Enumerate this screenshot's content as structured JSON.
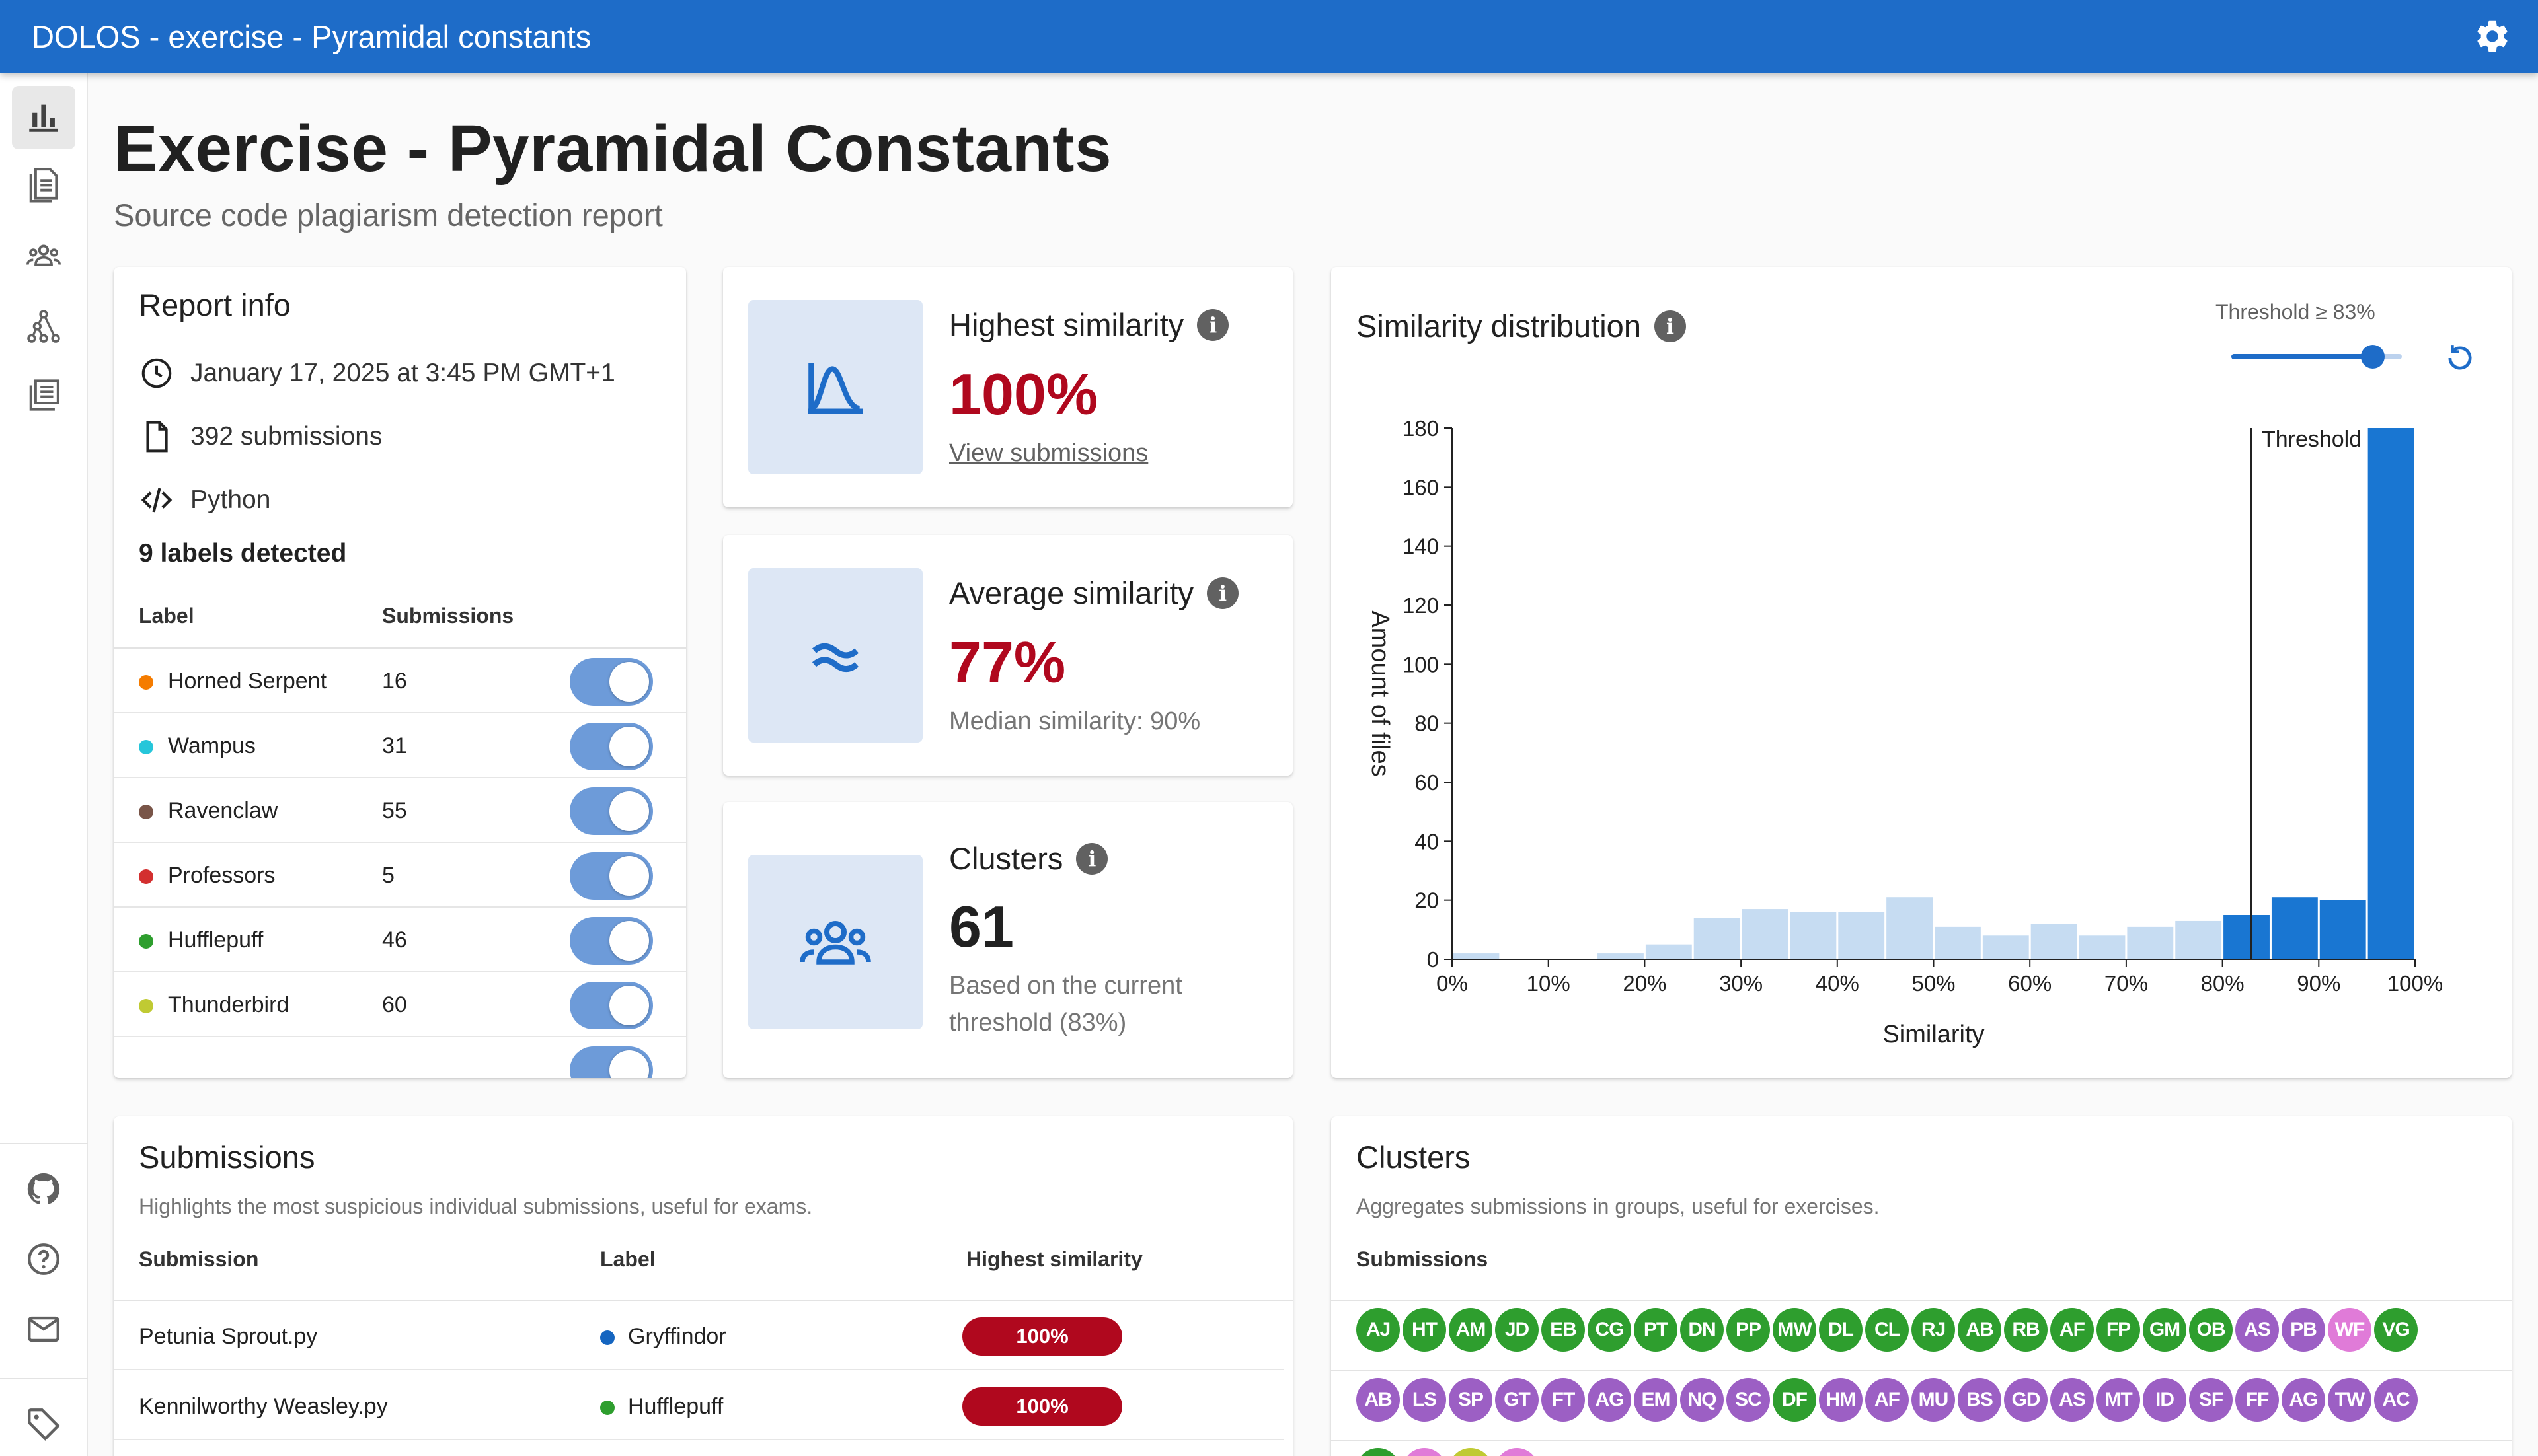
{
  "app": {
    "title": "DOLOS - exercise - Pyramidal constants"
  },
  "page": {
    "title": "Exercise - Pyramidal Constants",
    "subtitle": "Source code plagiarism detection report"
  },
  "colors": {
    "primary": "#1e6cc8",
    "danger": "#b0081e",
    "histogram_light": "#c6dcf2",
    "histogram_dark": "#1976d2"
  },
  "sidebar": {
    "items": [
      {
        "name": "overview",
        "icon": "bar-chart-icon",
        "active": true
      },
      {
        "name": "submissions",
        "icon": "document-list-icon",
        "active": false
      },
      {
        "name": "clusters",
        "icon": "group-icon",
        "active": false
      },
      {
        "name": "graph",
        "icon": "graph-icon",
        "active": false
      },
      {
        "name": "pairs",
        "icon": "table-icon",
        "active": false
      }
    ],
    "bottom_items": [
      {
        "name": "github",
        "icon": "github-icon"
      },
      {
        "name": "help",
        "icon": "help-icon"
      },
      {
        "name": "contact",
        "icon": "mail-icon"
      },
      {
        "name": "version",
        "icon": "tag-icon"
      }
    ]
  },
  "report_info": {
    "title": "Report info",
    "date": "January 17, 2025 at 3:45 PM GMT+1",
    "submissions": "392 submissions",
    "language": "Python",
    "labels_title": "9 labels detected",
    "columns": {
      "label": "Label",
      "submissions": "Submissions"
    },
    "labels": [
      {
        "name": "Horned Serpent",
        "count": "16",
        "color": "#f57c00"
      },
      {
        "name": "Wampus",
        "count": "31",
        "color": "#26c6da"
      },
      {
        "name": "Ravenclaw",
        "count": "55",
        "color": "#795548"
      },
      {
        "name": "Professors",
        "count": "5",
        "color": "#d32f2f"
      },
      {
        "name": "Hufflepuff",
        "count": "46",
        "color": "#2e9e2e"
      },
      {
        "name": "Thunderbird",
        "count": "60",
        "color": "#c0ca33"
      }
    ]
  },
  "stats": {
    "highest": {
      "title": "Highest similarity",
      "value": "100%",
      "link": "View submissions"
    },
    "average": {
      "title": "Average similarity",
      "value": "77%",
      "sub": "Median similarity: 90%"
    },
    "clusters": {
      "title": "Clusters",
      "value": "61",
      "sub": "Based on the current threshold (83%)"
    }
  },
  "distribution": {
    "title": "Similarity distribution",
    "threshold_label": "Threshold ≥ 83%",
    "threshold_value": 83
  },
  "chart_data": {
    "type": "bar",
    "title": "Similarity distribution",
    "xlabel": "Similarity",
    "ylabel": "Amount of files",
    "ylim": [
      0,
      180
    ],
    "yticks": [
      0,
      20,
      40,
      60,
      80,
      100,
      120,
      140,
      160,
      180
    ],
    "xticks": [
      "0%",
      "10%",
      "20%",
      "30%",
      "40%",
      "50%",
      "60%",
      "70%",
      "80%",
      "90%",
      "100%"
    ],
    "bin_width": 5,
    "bins_start": [
      0,
      5,
      10,
      15,
      20,
      25,
      30,
      35,
      40,
      45,
      50,
      55,
      60,
      65,
      70,
      75,
      80,
      85,
      90,
      95
    ],
    "values": [
      2,
      0,
      0,
      2,
      5,
      14,
      17,
      16,
      16,
      21,
      11,
      8,
      12,
      8,
      11,
      13,
      15,
      21,
      20,
      180
    ],
    "threshold": 83,
    "annotation": "Threshold",
    "grid": false
  },
  "submissions": {
    "title": "Submissions",
    "desc": "Highlights the most suspicious individual submissions, useful for exams.",
    "columns": {
      "submission": "Submission",
      "label": "Label",
      "similarity": "Highest similarity"
    },
    "rows": [
      {
        "name": "Petunia Sprout.py",
        "label": "Gryffindor",
        "label_color": "#1565c0",
        "similarity": "100%"
      },
      {
        "name": "Kennilworthy Weasley.py",
        "label": "Hufflepuff",
        "label_color": "#2e9e2e",
        "similarity": "100%"
      }
    ]
  },
  "clusters": {
    "title": "Clusters",
    "desc": "Aggregates submissions in groups, useful for exercises.",
    "column": "Submissions",
    "rows": [
      [
        {
          "t": "AJ",
          "c": "#2e9e2e"
        },
        {
          "t": "HT",
          "c": "#2e9e2e"
        },
        {
          "t": "AM",
          "c": "#2e9e2e"
        },
        {
          "t": "JD",
          "c": "#2e9e2e"
        },
        {
          "t": "EB",
          "c": "#2e9e2e"
        },
        {
          "t": "CG",
          "c": "#2e9e2e"
        },
        {
          "t": "PT",
          "c": "#2e9e2e"
        },
        {
          "t": "DN",
          "c": "#2e9e2e"
        },
        {
          "t": "PP",
          "c": "#2e9e2e"
        },
        {
          "t": "MW",
          "c": "#2e9e2e"
        },
        {
          "t": "DL",
          "c": "#2e9e2e"
        },
        {
          "t": "CL",
          "c": "#2e9e2e"
        },
        {
          "t": "RJ",
          "c": "#2e9e2e"
        },
        {
          "t": "AB",
          "c": "#2e9e2e"
        },
        {
          "t": "RB",
          "c": "#2e9e2e"
        },
        {
          "t": "AF",
          "c": "#2e9e2e"
        },
        {
          "t": "FP",
          "c": "#2e9e2e"
        },
        {
          "t": "GM",
          "c": "#2e9e2e"
        },
        {
          "t": "OB",
          "c": "#2e9e2e"
        },
        {
          "t": "AS",
          "c": "#9c5fc4"
        },
        {
          "t": "PB",
          "c": "#9c5fc4"
        },
        {
          "t": "WF",
          "c": "#e07bd8"
        },
        {
          "t": "VG",
          "c": "#2e9e2e"
        }
      ],
      [
        {
          "t": "AB",
          "c": "#9c5fc4"
        },
        {
          "t": "LS",
          "c": "#9c5fc4"
        },
        {
          "t": "SP",
          "c": "#9c5fc4"
        },
        {
          "t": "GT",
          "c": "#9c5fc4"
        },
        {
          "t": "FT",
          "c": "#9c5fc4"
        },
        {
          "t": "AG",
          "c": "#9c5fc4"
        },
        {
          "t": "EM",
          "c": "#9c5fc4"
        },
        {
          "t": "NQ",
          "c": "#9c5fc4"
        },
        {
          "t": "SC",
          "c": "#9c5fc4"
        },
        {
          "t": "DF",
          "c": "#2e9e2e"
        },
        {
          "t": "HM",
          "c": "#9c5fc4"
        },
        {
          "t": "AF",
          "c": "#9c5fc4"
        },
        {
          "t": "MU",
          "c": "#9c5fc4"
        },
        {
          "t": "BS",
          "c": "#9c5fc4"
        },
        {
          "t": "GD",
          "c": "#9c5fc4"
        },
        {
          "t": "AS",
          "c": "#9c5fc4"
        },
        {
          "t": "MT",
          "c": "#9c5fc4"
        },
        {
          "t": "ID",
          "c": "#9c5fc4"
        },
        {
          "t": "SF",
          "c": "#9c5fc4"
        },
        {
          "t": "FF",
          "c": "#9c5fc4"
        },
        {
          "t": "AG",
          "c": "#9c5fc4"
        },
        {
          "t": "TW",
          "c": "#9c5fc4"
        },
        {
          "t": "AC",
          "c": "#9c5fc4"
        }
      ]
    ]
  }
}
